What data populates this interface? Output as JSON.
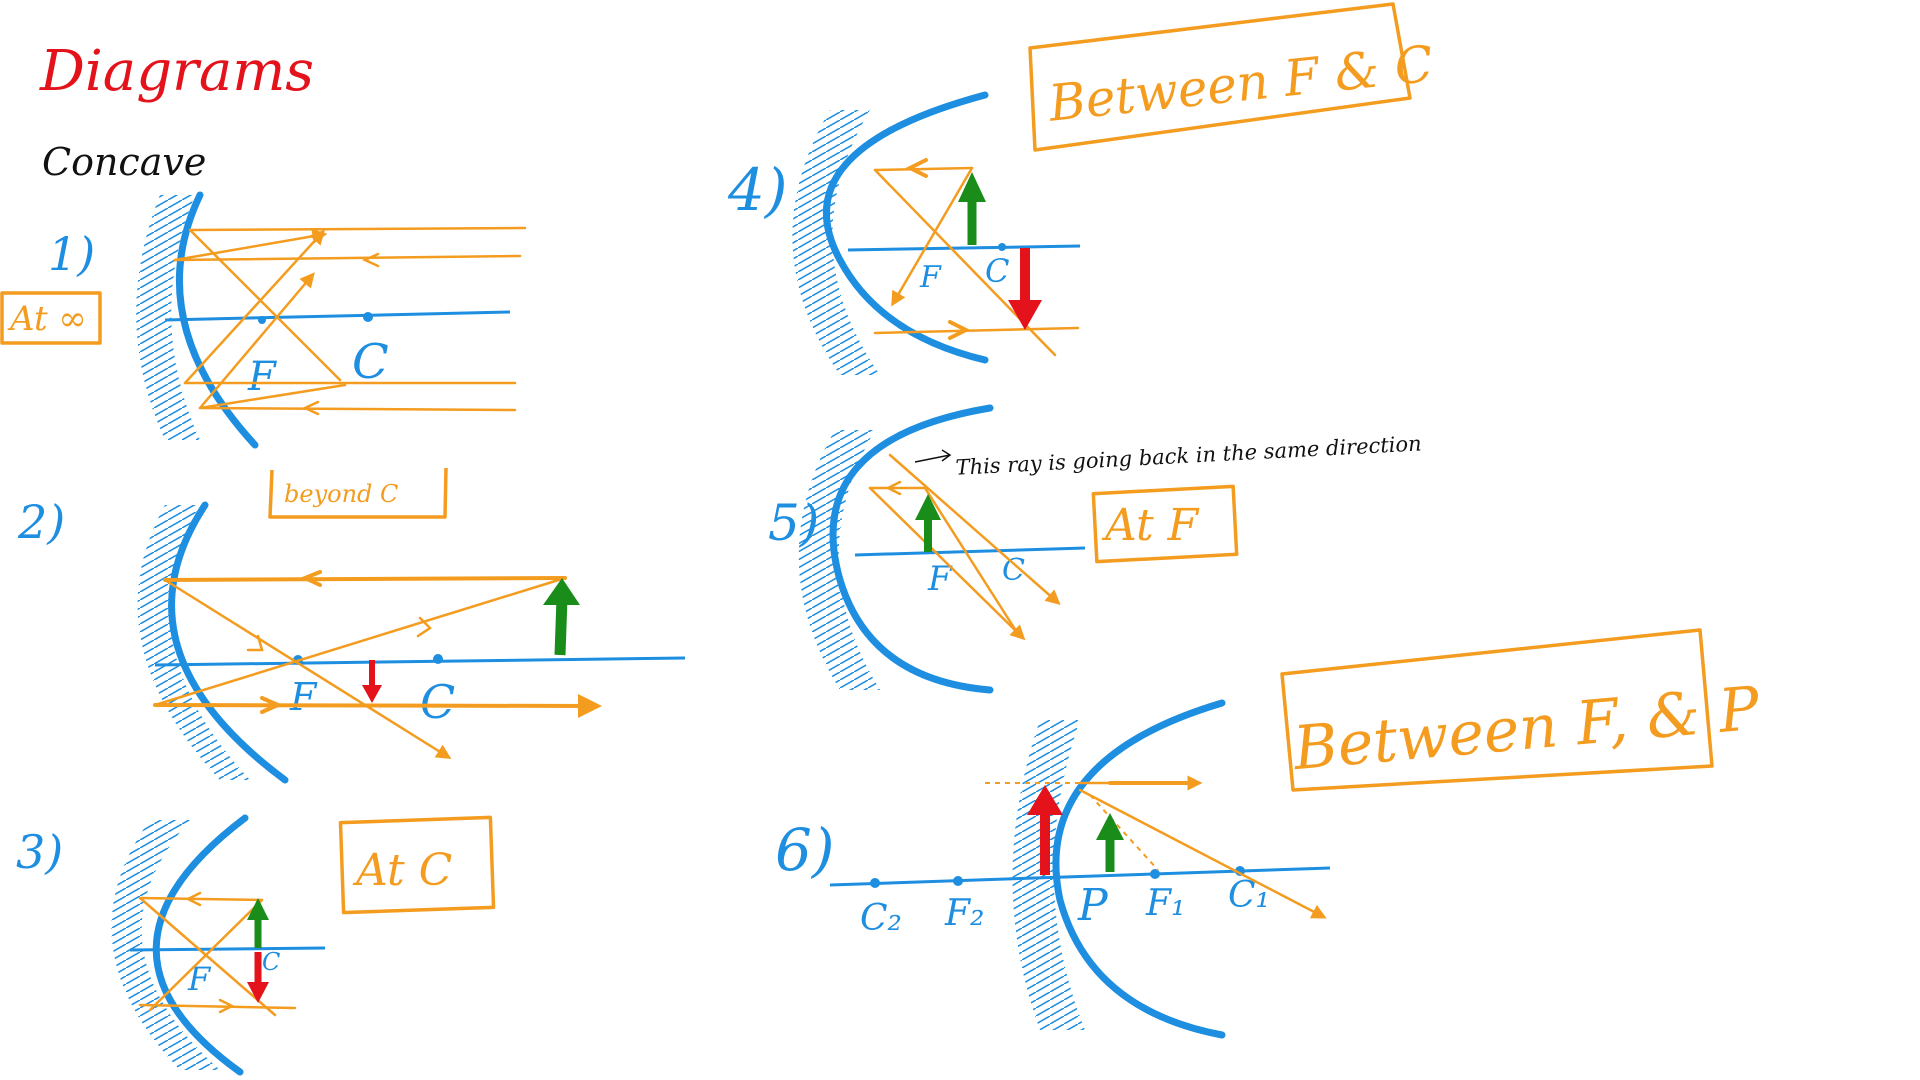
{
  "title": "Diagrams",
  "subtitle": "Concave",
  "colors": {
    "title": "#e3121b",
    "mirror": "#1e8ee0",
    "ray": "#f39c1f",
    "object": "#1a8c1a",
    "image": "#e3121b"
  },
  "cases": [
    {
      "number": "1)",
      "label": "At ∞",
      "points": [
        "F",
        "C"
      ]
    },
    {
      "number": "2)",
      "label": "beyond C",
      "points": [
        "F",
        "C"
      ]
    },
    {
      "number": "3)",
      "label": "At C",
      "points": [
        "F",
        "C"
      ]
    },
    {
      "number": "4)",
      "label": "Between F & C",
      "points": [
        "F",
        "C"
      ]
    },
    {
      "number": "5)",
      "label": "At F",
      "points": [
        "F",
        "C"
      ],
      "note": "This ray is going back in the same direction"
    },
    {
      "number": "6)",
      "label": "Between F, & P",
      "points": [
        "C₂",
        "F₂",
        "P",
        "F₁",
        "C₁"
      ]
    }
  ]
}
